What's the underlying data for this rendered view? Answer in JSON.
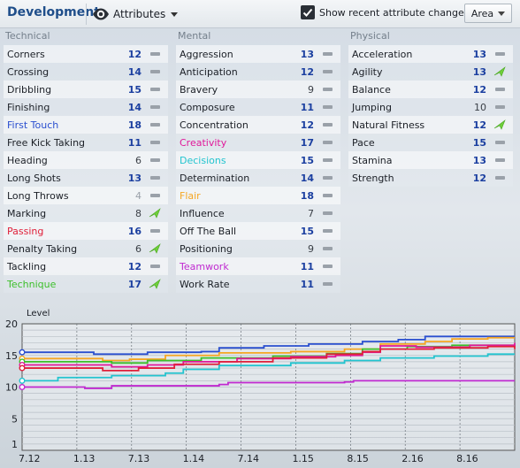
{
  "header": {
    "title": "Development",
    "view_label": "Attributes",
    "show_changes_label": "Show recent attribute changes",
    "show_changes_checked": true,
    "area_label": "Area"
  },
  "columns": [
    {
      "title": "Technical",
      "rows": [
        {
          "name": "Corners",
          "value": "12",
          "color": "#1b1f26",
          "trend": "flat"
        },
        {
          "name": "Crossing",
          "value": "14",
          "color": "#1b1f26",
          "trend": "flat"
        },
        {
          "name": "Dribbling",
          "value": "15",
          "color": "#1b1f26",
          "trend": "flat"
        },
        {
          "name": "Finishing",
          "value": "14",
          "color": "#1b1f26",
          "trend": "flat"
        },
        {
          "name": "First Touch",
          "value": "18",
          "color": "#2a4fcf",
          "trend": "flat"
        },
        {
          "name": "Free Kick Taking",
          "value": "11",
          "color": "#1b1f26",
          "trend": "flat"
        },
        {
          "name": "Heading",
          "value": "6",
          "color": "#1b1f26",
          "trend": "flat"
        },
        {
          "name": "Long Shots",
          "value": "13",
          "color": "#1b1f26",
          "trend": "flat"
        },
        {
          "name": "Long Throws",
          "value": "4",
          "color": "#1b1f26",
          "trend": "flat"
        },
        {
          "name": "Marking",
          "value": "8",
          "color": "#1b1f26",
          "trend": "up"
        },
        {
          "name": "Passing",
          "value": "16",
          "color": "#e0203a",
          "trend": "flat"
        },
        {
          "name": "Penalty Taking",
          "value": "6",
          "color": "#1b1f26",
          "trend": "up"
        },
        {
          "name": "Tackling",
          "value": "12",
          "color": "#1b1f26",
          "trend": "flat"
        },
        {
          "name": "Technique",
          "value": "17",
          "color": "#3cbf2a",
          "trend": "up"
        }
      ]
    },
    {
      "title": "Mental",
      "rows": [
        {
          "name": "Aggression",
          "value": "13",
          "color": "#1b1f26",
          "trend": "flat"
        },
        {
          "name": "Anticipation",
          "value": "12",
          "color": "#1b1f26",
          "trend": "flat"
        },
        {
          "name": "Bravery",
          "value": "9",
          "color": "#1b1f26",
          "trend": "flat"
        },
        {
          "name": "Composure",
          "value": "11",
          "color": "#1b1f26",
          "trend": "flat"
        },
        {
          "name": "Concentration",
          "value": "12",
          "color": "#1b1f26",
          "trend": "flat"
        },
        {
          "name": "Creativity",
          "value": "17",
          "color": "#e0189a",
          "trend": "flat"
        },
        {
          "name": "Decisions",
          "value": "15",
          "color": "#22c4cf",
          "trend": "flat"
        },
        {
          "name": "Determination",
          "value": "14",
          "color": "#1b1f26",
          "trend": "flat"
        },
        {
          "name": "Flair",
          "value": "18",
          "color": "#f5a623",
          "trend": "flat"
        },
        {
          "name": "Influence",
          "value": "7",
          "color": "#1b1f26",
          "trend": "flat"
        },
        {
          "name": "Off The Ball",
          "value": "15",
          "color": "#1b1f26",
          "trend": "flat"
        },
        {
          "name": "Positioning",
          "value": "9",
          "color": "#1b1f26",
          "trend": "flat"
        },
        {
          "name": "Teamwork",
          "value": "11",
          "color": "#c02ad0",
          "trend": "flat"
        },
        {
          "name": "Work Rate",
          "value": "11",
          "color": "#1b1f26",
          "trend": "flat"
        }
      ]
    },
    {
      "title": "Physical",
      "rows": [
        {
          "name": "Acceleration",
          "value": "13",
          "color": "#1b1f26",
          "trend": "flat"
        },
        {
          "name": "Agility",
          "value": "13",
          "color": "#1b1f26",
          "trend": "up"
        },
        {
          "name": "Balance",
          "value": "12",
          "color": "#1b1f26",
          "trend": "flat"
        },
        {
          "name": "Jumping",
          "value": "10",
          "color": "#1b1f26",
          "trend": "flat"
        },
        {
          "name": "Natural Fitness",
          "value": "12",
          "color": "#1b1f26",
          "trend": "up"
        },
        {
          "name": "Pace",
          "value": "15",
          "color": "#1b1f26",
          "trend": "flat"
        },
        {
          "name": "Stamina",
          "value": "13",
          "color": "#1b1f26",
          "trend": "flat"
        },
        {
          "name": "Strength",
          "value": "12",
          "color": "#1b1f26",
          "trend": "flat"
        }
      ]
    }
  ],
  "chart_data": {
    "type": "line",
    "ylabel": "Level",
    "ylim": [
      0,
      20
    ],
    "yticks": [
      1,
      5,
      10,
      15,
      20
    ],
    "xticks": [
      "7.12",
      "1.13",
      "7.13",
      "1.14",
      "7.14",
      "1.15",
      "8.15",
      "2.16",
      "8.16"
    ],
    "xlim": [
      0,
      55
    ],
    "series": [
      {
        "color": "#2a4fcf",
        "points": [
          [
            0,
            15.5
          ],
          [
            7,
            15.5
          ],
          [
            8,
            15.2
          ],
          [
            12,
            15.2
          ],
          [
            14,
            15.5
          ],
          [
            20,
            15.6
          ],
          [
            22,
            16.2
          ],
          [
            27,
            16.5
          ],
          [
            32,
            16.8
          ],
          [
            38,
            17.2
          ],
          [
            42,
            17.5
          ],
          [
            45,
            18
          ],
          [
            52,
            18
          ],
          [
            55,
            18
          ]
        ]
      },
      {
        "color": "#f5a623",
        "points": [
          [
            0,
            14.5
          ],
          [
            7,
            14.5
          ],
          [
            9,
            14.2
          ],
          [
            12,
            14.4
          ],
          [
            16,
            15
          ],
          [
            22,
            15.4
          ],
          [
            30,
            15.6
          ],
          [
            36,
            16
          ],
          [
            40,
            16.8
          ],
          [
            45,
            17.2
          ],
          [
            48,
            17.6
          ],
          [
            52,
            17.8
          ],
          [
            55,
            17.8
          ]
        ]
      },
      {
        "color": "#3cbf2a",
        "points": [
          [
            0,
            14
          ],
          [
            7,
            14
          ],
          [
            10,
            13.8
          ],
          [
            14,
            14.2
          ],
          [
            20,
            14.6
          ],
          [
            28,
            14.9
          ],
          [
            34,
            15.3
          ],
          [
            38,
            16
          ],
          [
            43,
            16.4
          ],
          [
            48,
            16.6
          ],
          [
            55,
            16.7
          ]
        ]
      },
      {
        "color": "#e0189a",
        "points": [
          [
            0,
            13.5
          ],
          [
            6,
            13.5
          ],
          [
            10,
            13.2
          ],
          [
            14,
            13.5
          ],
          [
            18,
            14
          ],
          [
            24,
            14.5
          ],
          [
            30,
            14.8
          ],
          [
            35,
            15
          ],
          [
            38,
            15.5
          ],
          [
            40,
            16.5
          ],
          [
            44,
            16.3
          ],
          [
            50,
            16.6
          ],
          [
            55,
            17
          ]
        ]
      },
      {
        "color": "#e0203a",
        "points": [
          [
            0,
            13
          ],
          [
            6,
            13
          ],
          [
            9,
            12.6
          ],
          [
            13,
            13
          ],
          [
            17,
            13.6
          ],
          [
            22,
            14
          ],
          [
            28,
            14.6
          ],
          [
            34,
            15.2
          ],
          [
            38,
            15.6
          ],
          [
            40,
            16
          ],
          [
            46,
            16.2
          ],
          [
            52,
            16.4
          ],
          [
            55,
            16
          ]
        ]
      },
      {
        "color": "#22c4cf",
        "points": [
          [
            0,
            11
          ],
          [
            4,
            11.5
          ],
          [
            10,
            11.8
          ],
          [
            16,
            12.2
          ],
          [
            18,
            12.8
          ],
          [
            22,
            13.4
          ],
          [
            30,
            13.8
          ],
          [
            36,
            14.2
          ],
          [
            40,
            14.6
          ],
          [
            46,
            14.9
          ],
          [
            52,
            15.2
          ],
          [
            55,
            15.2
          ]
        ]
      },
      {
        "color": "#c02ad0",
        "points": [
          [
            0,
            10
          ],
          [
            6,
            10
          ],
          [
            7,
            9.8
          ],
          [
            10,
            10.2
          ],
          [
            22,
            10.4
          ],
          [
            23,
            10.7
          ],
          [
            36,
            10.8
          ],
          [
            37,
            11
          ],
          [
            55,
            11
          ]
        ]
      }
    ]
  }
}
